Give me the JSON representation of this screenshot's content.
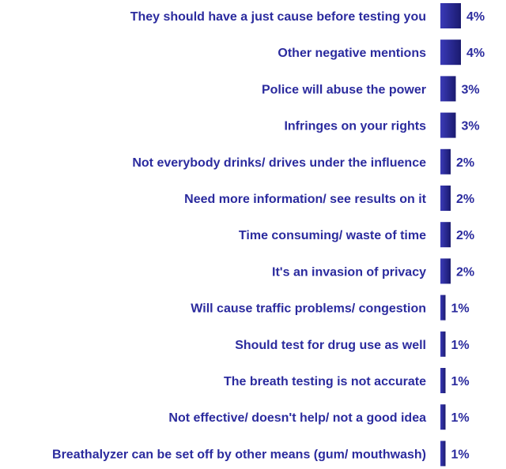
{
  "chart_data": {
    "type": "bar",
    "orientation": "horizontal",
    "categories": [
      "They should have a just cause before testing you",
      "Other negative mentions",
      "Police will abuse the power",
      "Infringes on your rights",
      "Not everybody drinks/ drives under the influence",
      "Need more information/ see results on it",
      "Time consuming/ waste of time",
      "It's an invasion of privacy",
      "Will cause traffic problems/ congestion",
      "Should test for drug use as well",
      "The breath testing is not accurate",
      "Not effective/ doesn't help/ not a good idea",
      "Breathalyzer can be set off by other means (gum/ mouthwash)"
    ],
    "values": [
      4,
      4,
      3,
      3,
      2,
      2,
      2,
      2,
      1,
      1,
      1,
      1,
      1
    ],
    "value_labels": [
      "4%",
      "4%",
      "3%",
      "3%",
      "2%",
      "2%",
      "2%",
      "2%",
      "1%",
      "1%",
      "1%",
      "1%",
      "1%"
    ],
    "unit": "%",
    "title": "",
    "xlabel": "",
    "ylabel": "",
    "grid": false,
    "legend": "none",
    "colors": {
      "bar_dark": "#1a1a6e",
      "bar_light": "#3a3ab8",
      "label": "#2b2b9e"
    }
  }
}
